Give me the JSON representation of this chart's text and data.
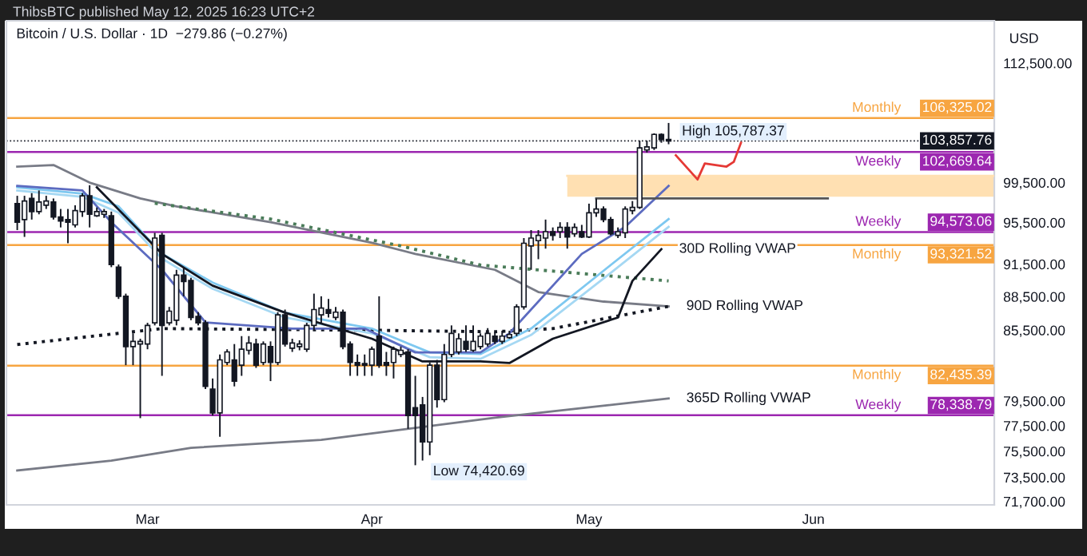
{
  "chart_data": {
    "type": "candlestick",
    "title": "Bitcoin / U.S. Dollar · 1D  −279.86 (−0.27%)",
    "ylabel": "USD",
    "log": "y",
    "annotations": [
      "ThibsBTC published May 12, 2025 16:23 UTC+2",
      {
        "text": "High 105,787.37",
        "x": "2025-05-12",
        "y": 105787.37
      },
      {
        "text": "103,857.76",
        "x": "2025-06-26",
        "y": 103857.76
      },
      {
        "text": "106,325.02",
        "x": "2025-06-26",
        "y": 106325.02
      },
      {
        "text": "102,669.64",
        "x": "2025-06-26",
        "y": 102669.64
      },
      {
        "text": "94,573.06",
        "x": "2025-06-26",
        "y": 94573.06
      },
      {
        "text": "93,321.52",
        "x": "2025-06-26",
        "y": 93321.52
      },
      {
        "text": "82,435.39",
        "x": "2025-06-26",
        "y": 82435.39
      },
      {
        "text": "78,338.79",
        "x": "2025-06-26",
        "y": 78338.79
      },
      {
        "text": "Low 74,420.69",
        "x": "2025-04-07",
        "y": 74420.69
      }
    ],
    "x": [
      "2025-02-11",
      "2025-02-12",
      "2025-02-13",
      "2025-02-14",
      "2025-02-15",
      "2025-02-16",
      "2025-02-17",
      "2025-02-18",
      "2025-02-19",
      "2025-02-20",
      "2025-02-21",
      "2025-02-22",
      "2025-02-23",
      "2025-02-24",
      "2025-02-25",
      "2025-02-26",
      "2025-02-27",
      "2025-02-28",
      "2025-03-01",
      "2025-03-02",
      "2025-03-03",
      "2025-03-04",
      "2025-03-05",
      "2025-03-06",
      "2025-03-07",
      "2025-03-08",
      "2025-03-09",
      "2025-03-10",
      "2025-03-11",
      "2025-03-12",
      "2025-03-13",
      "2025-03-14",
      "2025-03-15",
      "2025-03-16",
      "2025-03-17",
      "2025-03-18",
      "2025-03-19",
      "2025-03-20",
      "2025-03-21",
      "2025-03-22",
      "2025-03-23",
      "2025-03-24",
      "2025-03-25",
      "2025-03-26",
      "2025-03-27",
      "2025-03-28",
      "2025-03-29",
      "2025-03-30",
      "2025-03-31",
      "2025-04-01",
      "2025-04-02",
      "2025-04-03",
      "2025-04-04",
      "2025-04-05",
      "2025-04-06",
      "2025-04-07",
      "2025-04-08",
      "2025-04-09",
      "2025-04-10",
      "2025-04-11",
      "2025-04-12",
      "2025-04-13",
      "2025-04-14",
      "2025-04-15",
      "2025-04-16",
      "2025-04-17",
      "2025-04-18",
      "2025-04-19",
      "2025-04-20",
      "2025-04-21",
      "2025-04-22",
      "2025-04-23",
      "2025-04-24",
      "2025-04-25",
      "2025-04-26",
      "2025-04-27",
      "2025-04-28",
      "2025-04-29",
      "2025-04-30",
      "2025-05-01",
      "2025-05-02",
      "2025-05-03",
      "2025-05-04",
      "2025-05-05",
      "2025-05-06",
      "2025-05-07",
      "2025-05-08",
      "2025-05-09",
      "2025-05-10",
      "2025-05-11",
      "2025-05-12"
    ],
    "ohlc": [
      [
        97370,
        98160,
        94760,
        95530
      ],
      [
        95790,
        98160,
        94100,
        97630
      ],
      [
        97890,
        98430,
        95790,
        96580
      ],
      [
        96580,
        98700,
        96310,
        97530
      ],
      [
        97210,
        98160,
        96840,
        97630
      ],
      [
        97530,
        97890,
        95790,
        96050
      ],
      [
        96050,
        96840,
        95020,
        95640
      ],
      [
        95790,
        96840,
        93490,
        95530
      ],
      [
        95270,
        97210,
        95020,
        96680
      ],
      [
        96580,
        98430,
        96050,
        98160
      ],
      [
        98160,
        99230,
        95020,
        96310
      ],
      [
        96160,
        96990,
        96050,
        96580
      ],
      [
        96310,
        96840,
        95950,
        96580
      ],
      [
        96160,
        96580,
        91220,
        91470
      ],
      [
        91220,
        91470,
        88290,
        88530
      ],
      [
        88530,
        88770,
        82480,
        84070
      ],
      [
        84070,
        85220,
        82480,
        84520
      ],
      [
        84290,
        84750,
        78110,
        84520
      ],
      [
        84290,
        86150,
        83840,
        85920
      ],
      [
        86150,
        94500,
        85920,
        93990
      ],
      [
        94250,
        94500,
        81580,
        85920
      ],
      [
        86150,
        87570,
        85920,
        87190
      ],
      [
        86380,
        90970,
        85920,
        90480
      ],
      [
        90480,
        91220,
        88530,
        89890
      ],
      [
        89980,
        90230,
        86380,
        86620
      ],
      [
        86720,
        87100,
        85920,
        86150
      ],
      [
        86150,
        86380,
        80480,
        80700
      ],
      [
        80480,
        81360,
        78320,
        78530
      ],
      [
        78530,
        83390,
        76630,
        82930
      ],
      [
        82710,
        83840,
        82480,
        83610
      ],
      [
        82930,
        84290,
        80700,
        81140
      ],
      [
        82480,
        84980,
        81580,
        83840
      ],
      [
        83750,
        84980,
        83390,
        84380
      ],
      [
        84290,
        84750,
        82250,
        82480
      ],
      [
        82710,
        84520,
        82480,
        84290
      ],
      [
        84070,
        84520,
        81140,
        82710
      ],
      [
        82710,
        87100,
        82480,
        86860
      ],
      [
        86860,
        87330,
        84070,
        84290
      ],
      [
        83930,
        84750,
        83610,
        84380
      ],
      [
        84070,
        84620,
        83750,
        84290
      ],
      [
        83840,
        86150,
        83610,
        85920
      ],
      [
        85920,
        88770,
        85450,
        87330
      ],
      [
        86860,
        88530,
        86150,
        87470
      ],
      [
        87330,
        88290,
        86620,
        87000
      ],
      [
        86620,
        87570,
        86380,
        87100
      ],
      [
        87100,
        87330,
        83840,
        84070
      ],
      [
        84290,
        84520,
        81580,
        82710
      ],
      [
        82710,
        83390,
        81580,
        82480
      ],
      [
        82620,
        83390,
        81580,
        82480
      ],
      [
        82480,
        84070,
        81580,
        83840
      ],
      [
        84980,
        88530,
        82250,
        82480
      ],
      [
        82710,
        83610,
        81580,
        82480
      ],
      [
        82710,
        84070,
        81360,
        83840
      ],
      [
        83390,
        84070,
        83160,
        83750
      ],
      [
        83610,
        83840,
        77260,
        78320
      ],
      [
        78960,
        81580,
        74420.69,
        78320
      ],
      [
        79180,
        79830,
        74780,
        76220
      ],
      [
        76220,
        82710,
        75190,
        82480
      ],
      [
        82480,
        82930,
        78960,
        79610
      ],
      [
        79610,
        84290,
        79400,
        83390
      ],
      [
        83390,
        85920,
        83160,
        85220
      ],
      [
        83610,
        85220,
        83390,
        84750
      ],
      [
        84520,
        85920,
        83610,
        83840
      ],
      [
        83750,
        85920,
        83610,
        84520
      ],
      [
        84070,
        85220,
        83840,
        84980
      ],
      [
        84290,
        85680,
        84070,
        85220
      ],
      [
        84980,
        85310,
        84290,
        84520
      ],
      [
        84520,
        85450,
        84290,
        84980
      ],
      [
        84850,
        85450,
        84750,
        85120
      ],
      [
        85220,
        87810,
        84980,
        87570
      ],
      [
        87570,
        93990,
        87330,
        93490
      ],
      [
        93230,
        94760,
        90970,
        93990
      ],
      [
        93740,
        94760,
        91970,
        94250
      ],
      [
        93990,
        95790,
        92970,
        94610
      ],
      [
        94610,
        95020,
        93740,
        94250
      ],
      [
        94610,
        95530,
        93990,
        95020
      ],
      [
        95020,
        95530,
        92970,
        94100
      ],
      [
        94400,
        95420,
        94100,
        95020
      ],
      [
        94610,
        95270,
        93990,
        94100
      ],
      [
        94100,
        97370,
        93990,
        96460
      ],
      [
        96460,
        97890,
        96050,
        96840
      ],
      [
        96840,
        97100,
        95530,
        95790
      ],
      [
        95790,
        96050,
        94250,
        94400
      ],
      [
        94250,
        95020,
        93990,
        94610
      ],
      [
        94500,
        97100,
        93990,
        96840
      ],
      [
        96680,
        97630,
        96310,
        96990
      ],
      [
        96990,
        103880,
        96840,
        103110
      ],
      [
        102890,
        103880,
        102620,
        103220
      ],
      [
        103110,
        104670,
        102890,
        104550
      ],
      [
        104550,
        104670,
        103660,
        104000
      ],
      [
        104000,
        105787.37,
        103500,
        103857.76
      ]
    ],
    "series": [
      {
        "type": "line",
        "color": "#ffe0b2",
        "line_style": "solid",
        "x": [
          "2025-04-28",
          "2025-06-26"
        ],
        "values": [
          100200,
          100200
        ],
        "lower": [
          98060,
          98060
        ],
        "upper": [
          100200,
          100200
        ]
      },
      {
        "type": "line",
        "name": "365D Rolling VWAP",
        "color": "#787b86",
        "line_style": "solid",
        "x": [
          "2025-02-11",
          "2025-02-24",
          "2025-03-07",
          "2025-03-25",
          "2025-04-18",
          "2025-05-12"
        ],
        "values": [
          74020,
          74780,
          75760,
          76380,
          78150,
          79700
        ]
      },
      {
        "type": "line",
        "name": "90D Rolling VWAP",
        "color": "#787b86",
        "line_style": "solid",
        "x": [
          "2025-02-11",
          "2025-02-16",
          "2025-02-21",
          "2025-02-28",
          "2025-03-05",
          "2025-03-18",
          "2025-04-01",
          "2025-04-07",
          "2025-04-18",
          "2025-04-24",
          "2025-05-03",
          "2025-05-12"
        ],
        "values": [
          101150,
          101310,
          99500,
          97890,
          97100,
          95530,
          93530,
          92470,
          90970,
          88920,
          88050,
          87620
        ]
      },
      {
        "type": "line",
        "color": "#4a7c59",
        "line_style": "dotted",
        "x": [
          "2025-03-02",
          "2025-03-18",
          "2025-04-05",
          "2025-04-16",
          "2025-05-12"
        ],
        "values": [
          97410,
          95840,
          93230,
          91420,
          89940
        ]
      },
      {
        "type": "line",
        "color": "#131722",
        "line_style": "dotted",
        "x": [
          "2025-02-11",
          "2025-03-03",
          "2025-03-31",
          "2025-04-18",
          "2025-04-26",
          "2025-05-12"
        ],
        "values": [
          84250,
          85640,
          85500,
          85360,
          85640,
          87620
        ]
      },
      {
        "type": "line",
        "color": "#7ec8f0",
        "line_style": "solid",
        "x": [
          "2025-02-11",
          "2025-02-20",
          "2025-02-25",
          "2025-03-03",
          "2025-03-10",
          "2025-03-20",
          "2025-04-01",
          "2025-04-09",
          "2025-04-16",
          "2025-04-23",
          "2025-05-04",
          "2025-05-12"
        ],
        "values": [
          99010,
          98380,
          97100,
          92470,
          89790,
          87050,
          85640,
          83570,
          83430,
          85640,
          91420,
          95840
        ]
      },
      {
        "type": "line",
        "color": "#a5d8f3",
        "line_style": "solid",
        "x": [
          "2025-02-11",
          "2025-02-20",
          "2025-02-25",
          "2025-03-03",
          "2025-03-10",
          "2025-03-20",
          "2025-04-01",
          "2025-04-09",
          "2025-04-16",
          "2025-04-23",
          "2025-05-04",
          "2025-05-12"
        ],
        "values": [
          98700,
          98060,
          96470,
          92020,
          89210,
          86620,
          85220,
          83160,
          83020,
          85080,
          90680,
          95070
        ]
      },
      {
        "type": "line",
        "color": "#5c6bc0",
        "line_style": "solid",
        "x": [
          "2025-02-11",
          "2025-02-20",
          "2025-02-24",
          "2025-03-03",
          "2025-03-09",
          "2025-03-21",
          "2025-03-31",
          "2025-04-07",
          "2025-04-16",
          "2025-04-20",
          "2025-04-30",
          "2025-05-06",
          "2025-05-12"
        ],
        "values": [
          99170,
          98700,
          95530,
          90970,
          86190,
          85640,
          85640,
          83570,
          83570,
          85220,
          92470,
          95070,
          99170
        ]
      },
      {
        "type": "line",
        "name": "30D Rolling VWAP",
        "color": "#131722",
        "line_style": "solid",
        "x": [
          "2025-02-22",
          "2025-03-03",
          "2025-03-10",
          "2025-03-20",
          "2025-04-01",
          "2025-04-08",
          "2025-04-16",
          "2025-04-20",
          "2025-04-26",
          "2025-05-05",
          "2025-05-07",
          "2025-05-11"
        ],
        "values": [
          99010,
          92470,
          89500,
          87050,
          84750,
          82800,
          82800,
          82660,
          84750,
          86620,
          89940,
          92920
        ]
      },
      {
        "type": "line",
        "color": "#555555",
        "line_style": "solid",
        "x": [
          "2025-05-02",
          "2025-06-03"
        ],
        "values": [
          97890,
          97890
        ]
      },
      {
        "type": "line",
        "color": "#e53935",
        "line_style": "solid",
        "x": [
          "2025-05-13",
          "2025-05-16",
          "2025-05-17",
          "2025-05-20",
          "2025-05-21",
          "2025-05-22"
        ],
        "values": [
          102330,
          99820,
          101480,
          101150,
          101640,
          103660
        ]
      }
    ],
    "ref_lines": [
      {
        "axis": "y",
        "value": 103857.76,
        "label": null,
        "color": "#131722",
        "line_style": "dotted"
      },
      {
        "axis": "y",
        "value": 106325.02,
        "label": "Monthly",
        "color": "#f7a541"
      },
      {
        "axis": "y",
        "value": 102669.64,
        "label": "Weekly",
        "color": "#9c27b0"
      },
      {
        "axis": "y",
        "value": 94573.06,
        "label": "Weekly",
        "color": "#9c27b0"
      },
      {
        "axis": "y",
        "value": 93321.52,
        "label": "Monthly",
        "color": "#f7a541"
      },
      {
        "axis": "y",
        "value": 82435.39,
        "label": "Monthly",
        "color": "#f7a541"
      },
      {
        "axis": "y",
        "value": 78338.79,
        "label": "Weekly",
        "color": "#9c27b0"
      }
    ],
    "xlim": [
      "2025-02-09T12:00",
      "2025-06-26"
    ],
    "xticks": [
      {
        "value": "2025-03-01",
        "label": "Mar"
      },
      {
        "value": "2025-04-01",
        "label": "Apr"
      },
      {
        "value": "2025-05-01",
        "label": "May"
      },
      {
        "value": "2025-06-01",
        "label": "Jun"
      }
    ],
    "ylim": [
      71450,
      117500
    ],
    "yticks": [
      {
        "value": 112500,
        "label": "112,500.00"
      },
      {
        "value": 99500,
        "label": "99,500.00"
      },
      {
        "value": 95500,
        "label": "95,500.00"
      },
      {
        "value": 91500,
        "label": "91,500.00"
      },
      {
        "value": 88500,
        "label": "88,500.00"
      },
      {
        "value": 85500,
        "label": "85,500.00"
      },
      {
        "value": 79500,
        "label": "79,500.00"
      },
      {
        "value": 77500,
        "label": "77,500.00"
      },
      {
        "value": 75500,
        "label": "75,500.00"
      },
      {
        "value": 73500,
        "label": "73,500.00"
      },
      {
        "value": 71700,
        "label": "71,700.00"
      }
    ]
  }
}
